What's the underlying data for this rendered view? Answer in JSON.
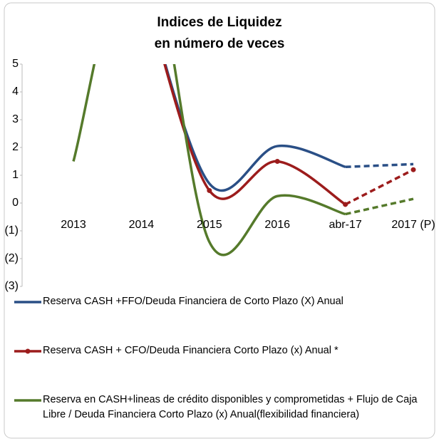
{
  "chart_data": {
    "type": "line",
    "title": [
      "Indices de Liquidez",
      "en número de veces"
    ],
    "categories": [
      "2013",
      "2014",
      "2015",
      "2016",
      "abr-17",
      "2017 (P)"
    ],
    "series": [
      {
        "name": "Reserva CASH +FFO/Deuda Financiera de Corto Plazo (X) Anual",
        "color": "#2a4f86",
        "markers": false,
        "values": [
          null,
          8,
          0.7,
          2.05,
          1.3,
          1.4
        ]
      },
      {
        "name": "Reserva CASH + CFO/Deuda Financiera Corto Plazo (x) Anual *",
        "color": "#9c1c1c",
        "markers": true,
        "values": [
          null,
          8,
          0.45,
          1.5,
          -0.05,
          1.2
        ]
      },
      {
        "name": "Reserva en CASH+lineas de crédito disponibles y comprometidas + Flujo de Caja Libre / Deuda Financiera Corto Plazo  (x) Anual(flexibilidad financiera)",
        "color": "#557a2b",
        "markers": false,
        "values": [
          1.5,
          10,
          -1.4,
          0.25,
          -0.4,
          0.15
        ]
      }
    ],
    "ylim": [
      -3,
      5
    ],
    "yticks": [
      {
        "value": -3,
        "label": "(3)"
      },
      {
        "value": -2,
        "label": "(2)"
      },
      {
        "value": -1,
        "label": "(1)"
      },
      0,
      1,
      2,
      3,
      4,
      5
    ]
  }
}
